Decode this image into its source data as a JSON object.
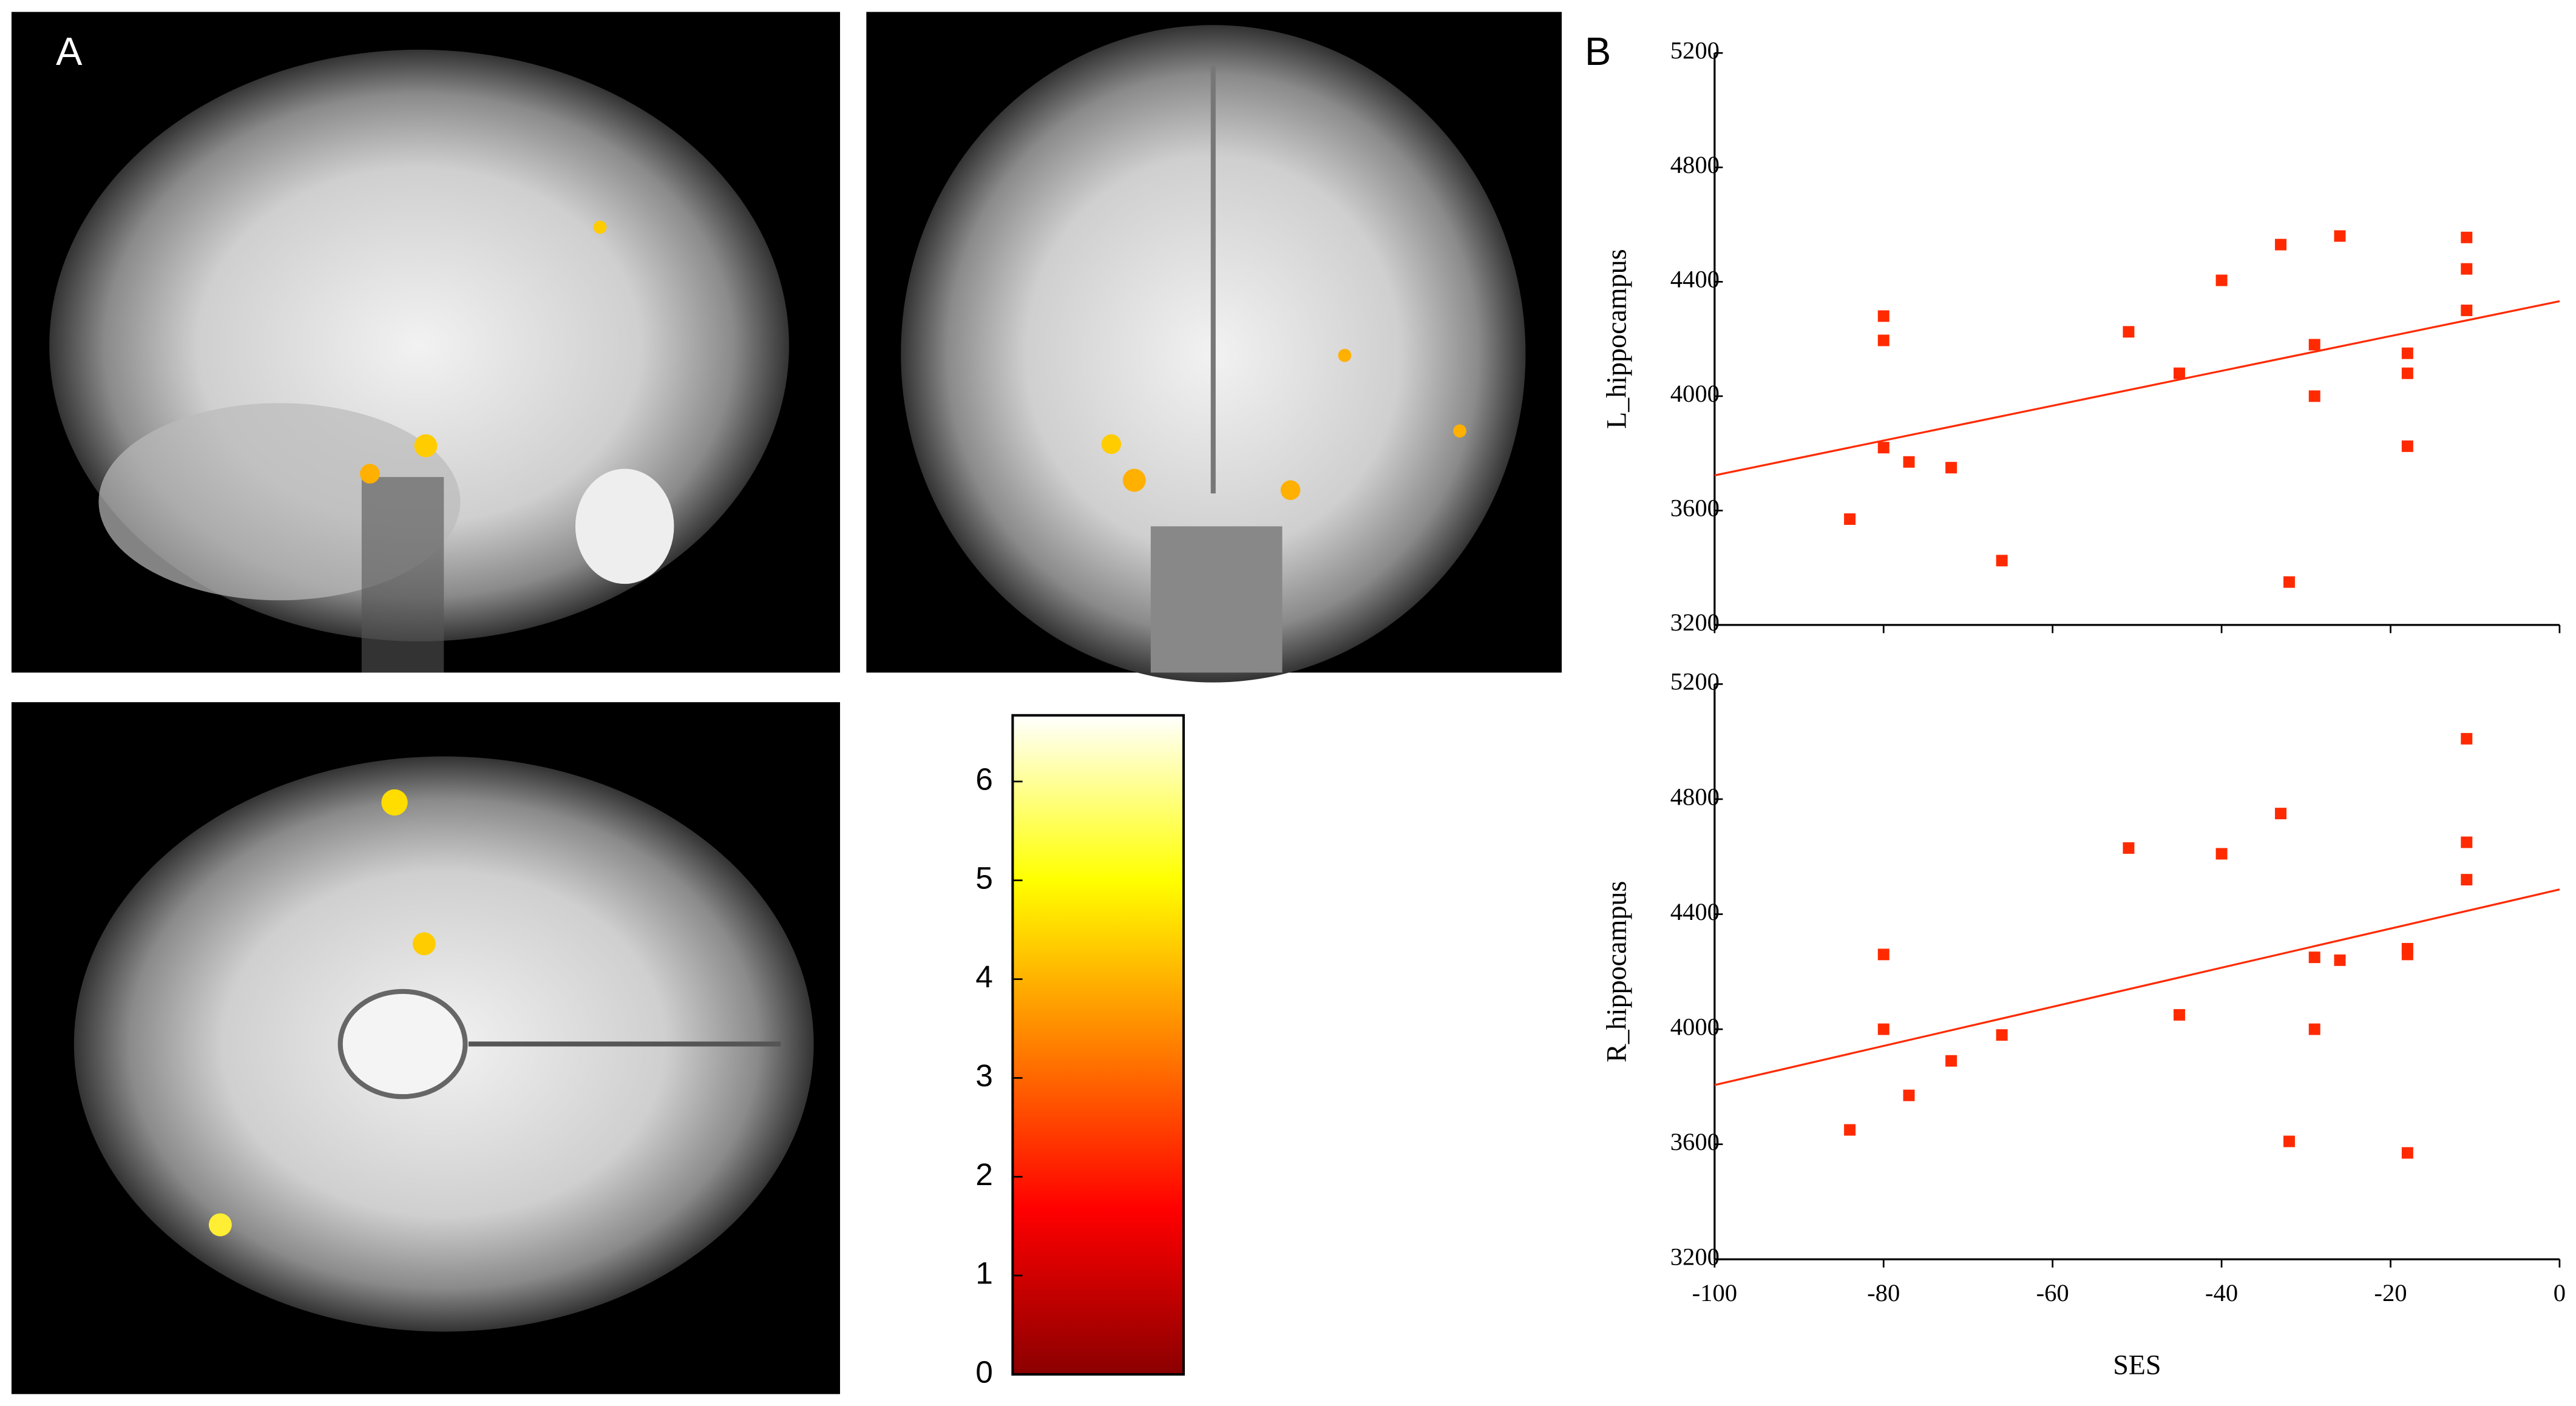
{
  "panel_labels": {
    "a": "A",
    "b": "B"
  },
  "colorbar": {
    "ylim": [
      0,
      6.67
    ],
    "yticks": [
      0,
      1,
      2,
      3,
      4,
      5,
      6
    ],
    "colors": [
      "#8b0000",
      "#ff0000",
      "#ff8000",
      "#ffff00",
      "#ffffff"
    ]
  },
  "chart_data": [
    {
      "type": "scatter",
      "ylabel": "L_hippocampus",
      "color": "#ff2a00",
      "x": [
        -84,
        -80,
        -80,
        -80,
        -77,
        -72,
        -66,
        -51,
        -45,
        -40,
        -33,
        -32,
        -29,
        -29,
        -26,
        -18,
        -18,
        -18,
        -11,
        -11,
        -11
      ],
      "y": [
        3570,
        4280,
        4195,
        3820,
        3770,
        3750,
        3425,
        4225,
        4080,
        4405,
        4530,
        3350,
        4180,
        4000,
        4560,
        4150,
        4080,
        3825,
        4555,
        4445,
        4300
      ],
      "fit": {
        "x": [
          -100,
          0
        ],
        "y": [
          3723,
          4332
        ]
      },
      "xlim": [
        -100,
        0
      ],
      "xticks": [
        -100,
        -80,
        -60,
        -40,
        -20,
        0
      ],
      "ylim": [
        3200,
        5200
      ],
      "yticks": [
        3200,
        3600,
        4000,
        4400,
        4800,
        5200
      ]
    },
    {
      "type": "scatter",
      "xlabel": "SES",
      "ylabel": "R_hippocampus",
      "color": "#ff2a00",
      "x": [
        -84,
        -80,
        -80,
        -77,
        -72,
        -66,
        -51,
        -45,
        -40,
        -33,
        -32,
        -29,
        -29,
        -26,
        -18,
        -18,
        -18,
        -11,
        -11,
        -11
      ],
      "y": [
        3650,
        4260,
        4000,
        3770,
        3890,
        3980,
        4630,
        4050,
        4610,
        4750,
        3610,
        4250,
        4000,
        4240,
        4280,
        4260,
        3570,
        5010,
        4650,
        4520
      ],
      "fit": {
        "x": [
          -100,
          0
        ],
        "y": [
          3806,
          4486
        ]
      },
      "xlim": [
        -100,
        0
      ],
      "xticks": [
        -100,
        -80,
        -60,
        -40,
        -20,
        0
      ],
      "ylim": [
        3200,
        5200
      ],
      "yticks": [
        3200,
        3600,
        4000,
        4400,
        4800,
        5200
      ]
    }
  ]
}
